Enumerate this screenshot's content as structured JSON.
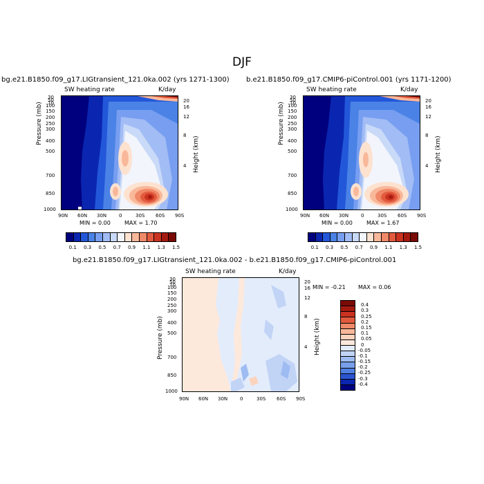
{
  "figure_title": "DJF",
  "chart_data": [
    {
      "type": "heatmap",
      "title": "bg.e21.B1850.f09_g17.LIGtransient_121.0ka.002 (yrs 1271-1300)",
      "variable_label": "SW heating rate",
      "units_label": "K/day",
      "ylabel": "Pressure (mb)",
      "ylabel_right": "Height (km)",
      "x_ticks": [
        "90N",
        "60N",
        "30N",
        "0",
        "30S",
        "60S",
        "90S"
      ],
      "y_ticks": [
        "30",
        "50",
        "70",
        "100",
        "150",
        "200",
        "250",
        "300",
        "400",
        "500",
        "700",
        "850",
        "1000"
      ],
      "y_ticks_right": [
        "20",
        "16",
        "12",
        "8",
        "4"
      ],
      "min_label": "MIN =    0.00",
      "max_label": "MAX =    1.70",
      "colorbar_levels": [
        "0.1",
        "0.3",
        "0.5",
        "0.7",
        "0.9",
        "1.1",
        "1.3",
        "1.5"
      ],
      "colorbar_colors": [
        "#00007f",
        "#0a26b0",
        "#2357d9",
        "#4a82e6",
        "#779ef0",
        "#a2bcf5",
        "#c9daf8",
        "#f2f5fc",
        "#fde2d0",
        "#f9b89a",
        "#f08968",
        "#e25a3e",
        "#c93320",
        "#a51a10",
        "#7a0a05"
      ]
    },
    {
      "type": "heatmap",
      "title": "b.e21.B1850.f09_g17.CMIP6-piControl.001 (yrs 1171-1200)",
      "variable_label": "SW heating rate",
      "units_label": "K/day",
      "ylabel": "Pressure (mb)",
      "ylabel_right": "Height (km)",
      "x_ticks": [
        "90N",
        "60N",
        "30N",
        "0",
        "30S",
        "60S",
        "90S"
      ],
      "y_ticks": [
        "30",
        "50",
        "70",
        "100",
        "150",
        "200",
        "250",
        "300",
        "400",
        "500",
        "700",
        "850",
        "1000"
      ],
      "y_ticks_right": [
        "20",
        "16",
        "12",
        "8",
        "4"
      ],
      "min_label": "MIN =    0.00",
      "max_label": "MAX =    1.67",
      "colorbar_levels": [
        "0.1",
        "0.3",
        "0.5",
        "0.7",
        "0.9",
        "1.1",
        "1.3",
        "1.5"
      ],
      "colorbar_colors": [
        "#00007f",
        "#0a26b0",
        "#2357d9",
        "#4a82e6",
        "#779ef0",
        "#a2bcf5",
        "#c9daf8",
        "#f2f5fc",
        "#fde2d0",
        "#f9b89a",
        "#f08968",
        "#e25a3e",
        "#c93320",
        "#a51a10",
        "#7a0a05"
      ]
    },
    {
      "type": "heatmap",
      "title": "bg.e21.B1850.f09_g17.LIGtransient_121.0ka.002 - b.e21.B1850.f09_g17.CMIP6-piControl.001",
      "variable_label": "SW heating rate",
      "units_label": "K/day",
      "ylabel": "Pressure (mb)",
      "ylabel_right": "Height (km)",
      "x_ticks": [
        "90N",
        "60N",
        "30N",
        "0",
        "30S",
        "60S",
        "90S"
      ],
      "y_ticks": [
        "30",
        "50",
        "70",
        "100",
        "150",
        "200",
        "250",
        "300",
        "400",
        "500",
        "700",
        "850",
        "1000"
      ],
      "y_ticks_right": [
        "20",
        "16",
        "12",
        "8",
        "4"
      ],
      "min_label": "MIN =   -0.21",
      "max_label": "MAX =    0.06",
      "colorbar_levels": [
        "0.4",
        "0.3",
        "0.25",
        "0.2",
        "0.15",
        "0.1",
        "0.05",
        "0",
        "-0.05",
        "-0.1",
        "-0.15",
        "-0.2",
        "-0.25",
        "-0.3",
        "-0.4"
      ],
      "colorbar_colors": [
        "#7a0a05",
        "#a51a10",
        "#c93320",
        "#e25a3e",
        "#f08968",
        "#f9b89a",
        "#fcd3bd",
        "#fde9dc",
        "#e3ecfb",
        "#c1d4f6",
        "#9ebcf2",
        "#789fea",
        "#4f7fe2",
        "#2a55d0",
        "#0a26b0",
        "#00007f"
      ]
    }
  ]
}
